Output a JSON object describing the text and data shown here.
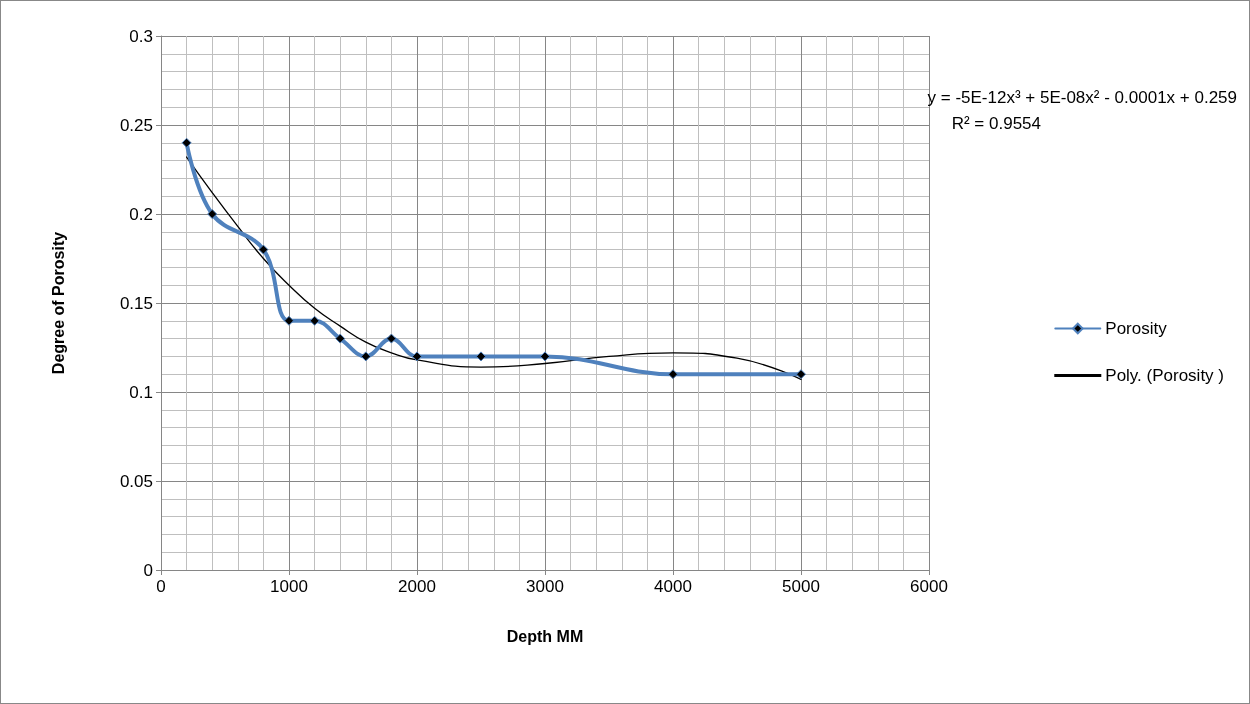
{
  "chart_data": {
    "type": "line",
    "xlabel": "Depth MM",
    "ylabel": "Degree of Porosity",
    "annotations": [
      "y = -5E-12x³ + 5E-08x² - 0.0001x + 0.259",
      "R² = 0.9554"
    ],
    "x": [
      200,
      400,
      800,
      1000,
      1200,
      1400,
      1600,
      1800,
      2000,
      2500,
      3000,
      4000,
      5000
    ],
    "series": [
      {
        "name": "Porosity",
        "color": "#4f81bd",
        "marker": "diamond",
        "values": [
          0.24,
          0.2,
          0.18,
          0.14,
          0.14,
          0.13,
          0.12,
          0.13,
          0.12,
          0.12,
          0.12,
          0.11,
          0.11
        ]
      },
      {
        "name": "Poly. (Porosity )",
        "type": "line",
        "color": "#000000",
        "marker": "none",
        "x": [
          200,
          400,
          600,
          800,
          1000,
          1200,
          1400,
          1600,
          1800,
          2000,
          2500,
          3000,
          3500,
          4000,
          4500,
          5000
        ],
        "values": [
          0.232,
          0.212,
          0.193,
          0.175,
          0.16,
          0.147,
          0.137,
          0.128,
          0.122,
          0.118,
          0.114,
          0.116,
          0.12,
          0.122,
          0.119,
          0.107
        ]
      }
    ],
    "xlim": [
      0,
      6000
    ],
    "xticks": [
      0,
      1000,
      2000,
      3000,
      4000,
      5000,
      6000
    ],
    "ylim": [
      0,
      0.3
    ],
    "yticks": [
      0,
      0.05,
      0.1,
      0.15,
      0.2,
      0.25,
      0.3
    ],
    "grid": true,
    "legend": "right"
  }
}
